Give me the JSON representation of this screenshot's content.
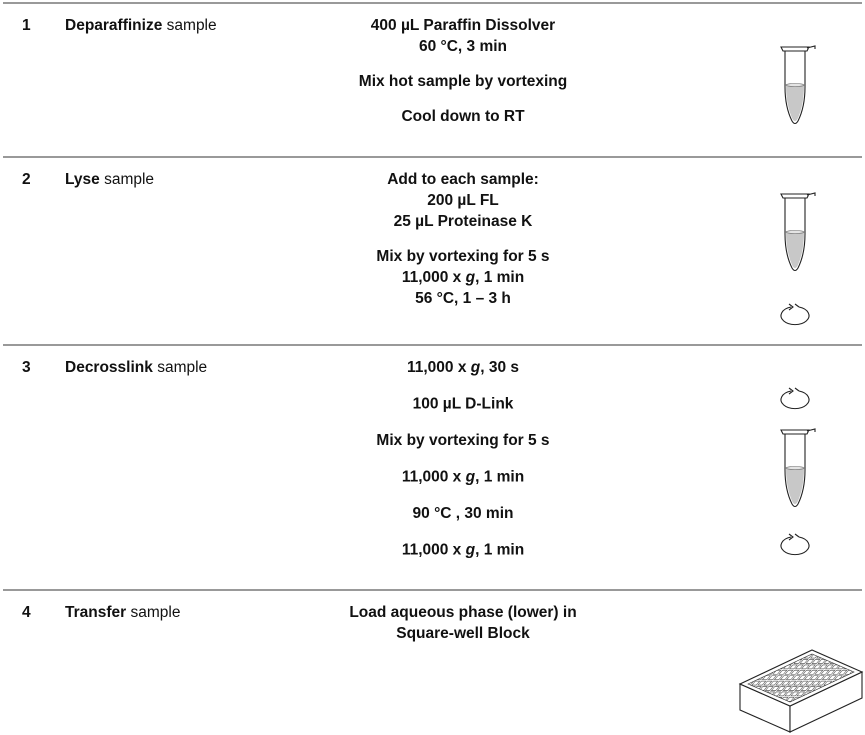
{
  "rows": [
    {
      "number": "1",
      "step": {
        "action": "Deparaffinize",
        "object": "sample"
      },
      "instructions": [
        [
          [
            {
              "text": "400 µL Paraffin Dissolver"
            }
          ],
          [
            {
              "text": "60 °C, 3 min"
            }
          ]
        ],
        [
          [
            {
              "text": "Mix hot sample by vortexing"
            }
          ]
        ],
        [
          [
            {
              "text": "Cool down to RT"
            }
          ]
        ]
      ]
    },
    {
      "number": "2",
      "step": {
        "action": "Lyse",
        "object": "sample"
      },
      "instructions": [
        [
          [
            {
              "text": "Add to each sample:"
            }
          ],
          [
            {
              "text": "200 µL FL"
            }
          ],
          [
            {
              "text": "25 µL Proteinase K"
            }
          ]
        ],
        [
          [
            {
              "text": "Mix by vortexing for 5 s"
            }
          ],
          [
            {
              "text": "11,000 x "
            },
            {
              "text": "g",
              "italic": true
            },
            {
              "text": ", 1 min"
            }
          ],
          [
            {
              "text": "56 °C, 1 – 3 h"
            }
          ]
        ]
      ]
    },
    {
      "number": "3",
      "step": {
        "action": "Decrosslink",
        "object": "sample"
      },
      "instructions": [
        [
          [
            {
              "text": "11,000 x "
            },
            {
              "text": "g",
              "italic": true
            },
            {
              "text": ", 30 s"
            }
          ]
        ],
        [
          [
            {
              "text": "100 µL D-Link"
            }
          ]
        ],
        [
          [
            {
              "text": "Mix by vortexing for 5 s"
            }
          ]
        ],
        [
          [
            {
              "text": "11,000 x "
            },
            {
              "text": "g",
              "italic": true
            },
            {
              "text": ", 1 min"
            }
          ]
        ],
        [
          [
            {
              "text": "90 °C , 30 min"
            }
          ]
        ],
        [
          [
            {
              "text": "11,000 x "
            },
            {
              "text": "g",
              "italic": true
            },
            {
              "text": ", 1 min"
            }
          ]
        ]
      ]
    },
    {
      "number": "4",
      "step": {
        "action": "Transfer",
        "object": "sample"
      },
      "instructions": [
        [
          [
            {
              "text": "Load aqueous phase (lower) in"
            }
          ],
          [
            {
              "text": "Square-well Block"
            }
          ]
        ]
      ]
    }
  ]
}
